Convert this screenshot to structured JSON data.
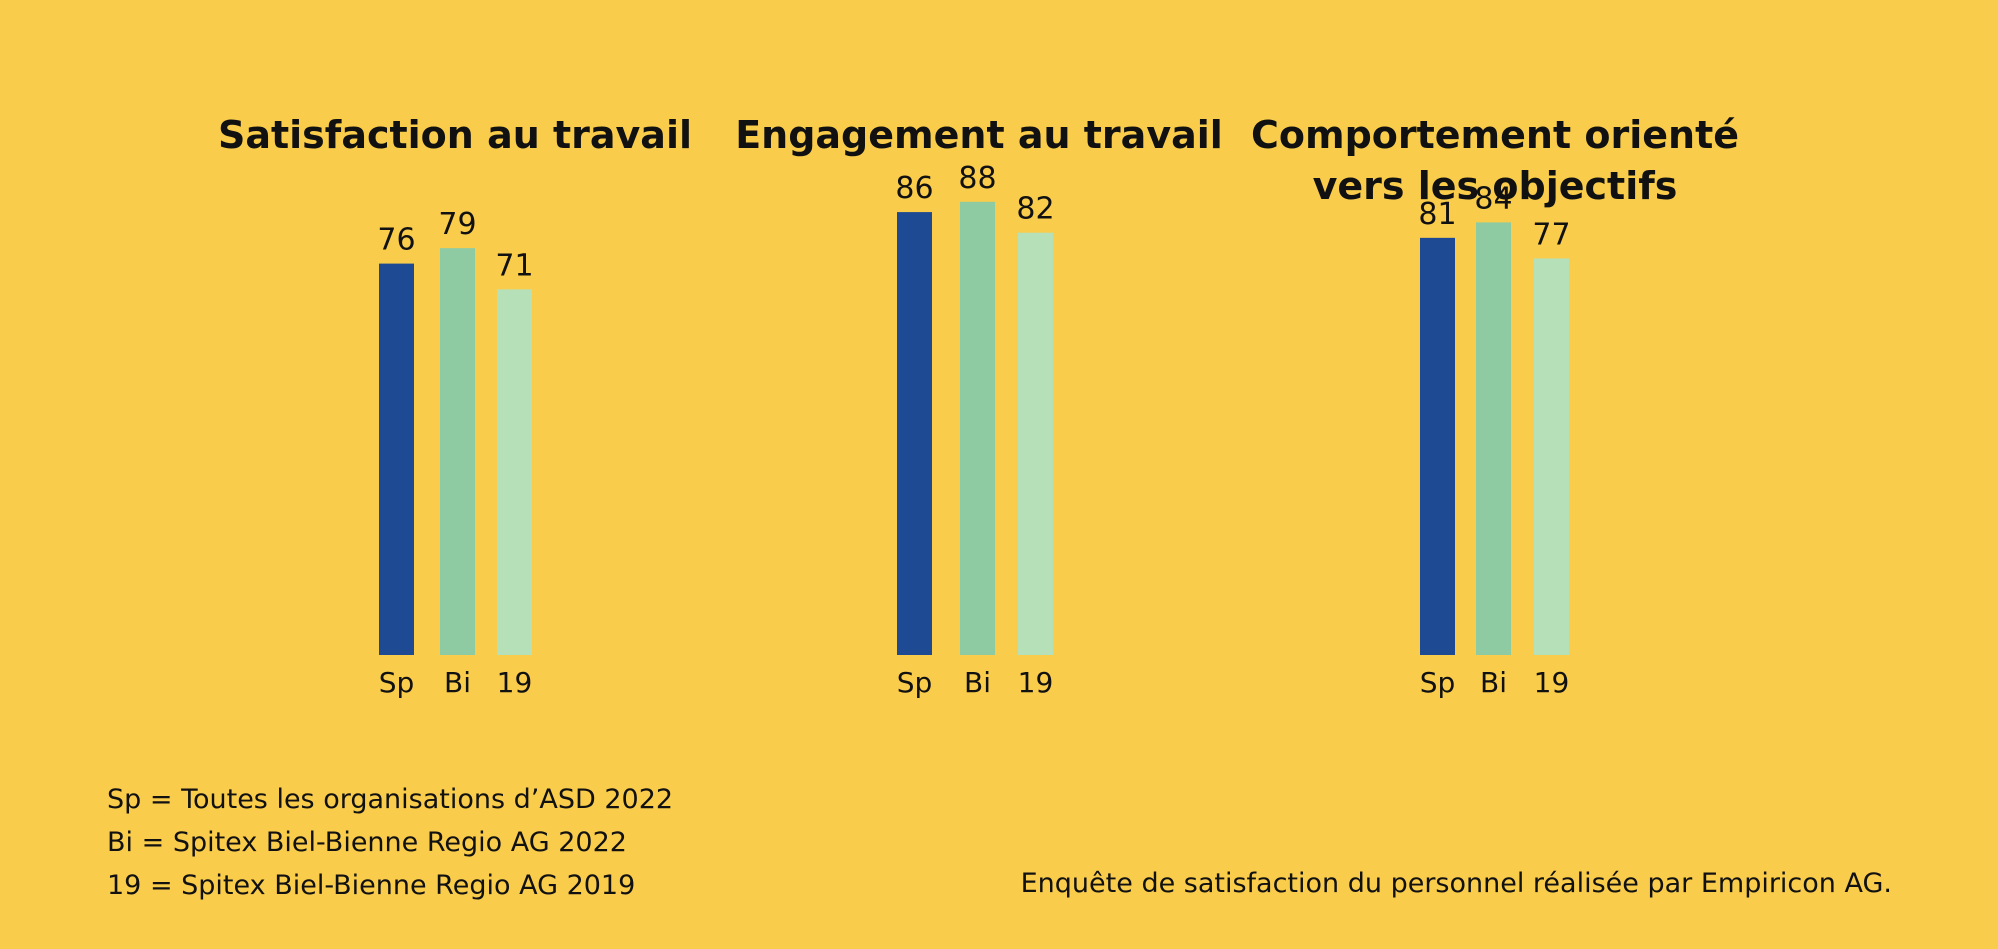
{
  "colors": {
    "background": "#F9CC4B",
    "Sp": "#1D4A93",
    "Bi": "#8ECBA3",
    "19": "#B6E0B8"
  },
  "chart_data": [
    {
      "type": "bar",
      "title": "Satisfaction au travail",
      "categories": [
        "Sp",
        "Bi",
        "19"
      ],
      "values": [
        76,
        79,
        71
      ],
      "ylim": [
        0,
        100
      ]
    },
    {
      "type": "bar",
      "title": "Engagement au travail",
      "categories": [
        "Sp",
        "Bi",
        "19"
      ],
      "values": [
        86,
        88,
        82
      ],
      "ylim": [
        0,
        100
      ]
    },
    {
      "type": "bar",
      "title": "Comportement orienté\nvers les objectifs",
      "categories": [
        "Sp",
        "Bi",
        "19"
      ],
      "values": [
        81,
        84,
        77
      ],
      "ylim": [
        0,
        100
      ]
    }
  ],
  "legend": [
    "Sp = Toutes les organisations d’ASD 2022",
    "Bi = Spitex Biel-Bienne Regio AG 2022",
    "19 = Spitex Biel-Bienne Regio AG 2019"
  ],
  "source": "Enquête de satisfaction du personnel réalisée par Empiricon AG."
}
